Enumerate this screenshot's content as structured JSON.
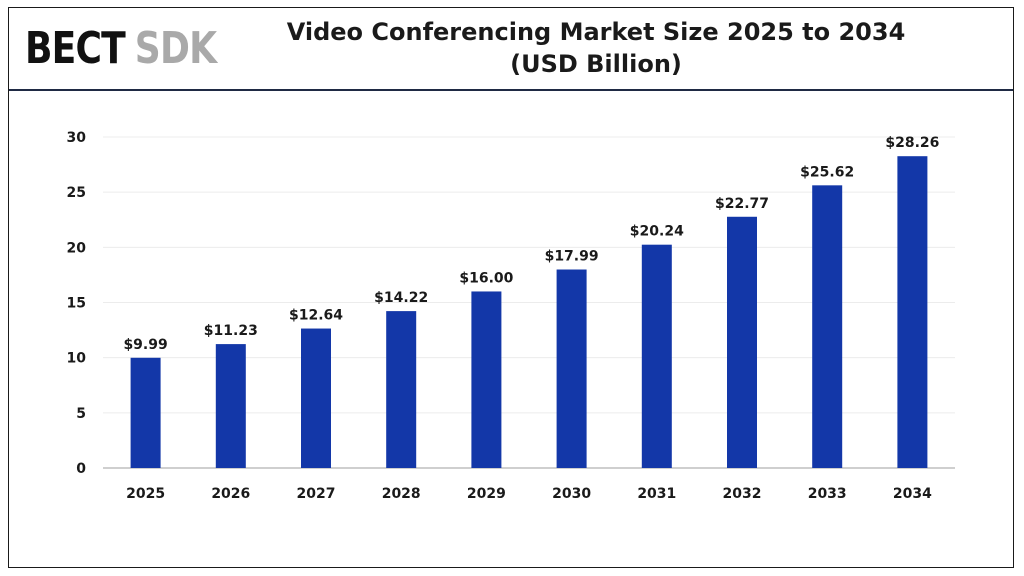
{
  "logo": {
    "word1": "BECT",
    "word2": "SDK"
  },
  "colors": {
    "bar": "#1337a8",
    "axis": "#bfbfbf",
    "grid": "#ececec",
    "text": "#1a1a1a",
    "logo_dark": "#111111",
    "logo_light": "#a9a9a9"
  },
  "chart_data": {
    "type": "bar",
    "title": "Video Conferencing Market Size 2025 to 2034",
    "subtitle": "(USD Billion)",
    "categories": [
      "2025",
      "2026",
      "2027",
      "2028",
      "2029",
      "2030",
      "2031",
      "2032",
      "2033",
      "2034"
    ],
    "values": [
      9.99,
      11.23,
      12.64,
      14.22,
      16.0,
      17.99,
      20.24,
      22.77,
      25.62,
      28.26
    ],
    "data_labels": [
      "$9.99",
      "$11.23",
      "$12.64",
      "$14.22",
      "$16.00",
      "$17.99",
      "$20.24",
      "$22.77",
      "$25.62",
      "$28.26"
    ],
    "y_ticks": [
      0,
      5,
      10,
      15,
      20,
      25,
      30
    ],
    "ylim": [
      0,
      30
    ],
    "xlabel": "",
    "ylabel": "",
    "grid": true,
    "legend": false
  }
}
